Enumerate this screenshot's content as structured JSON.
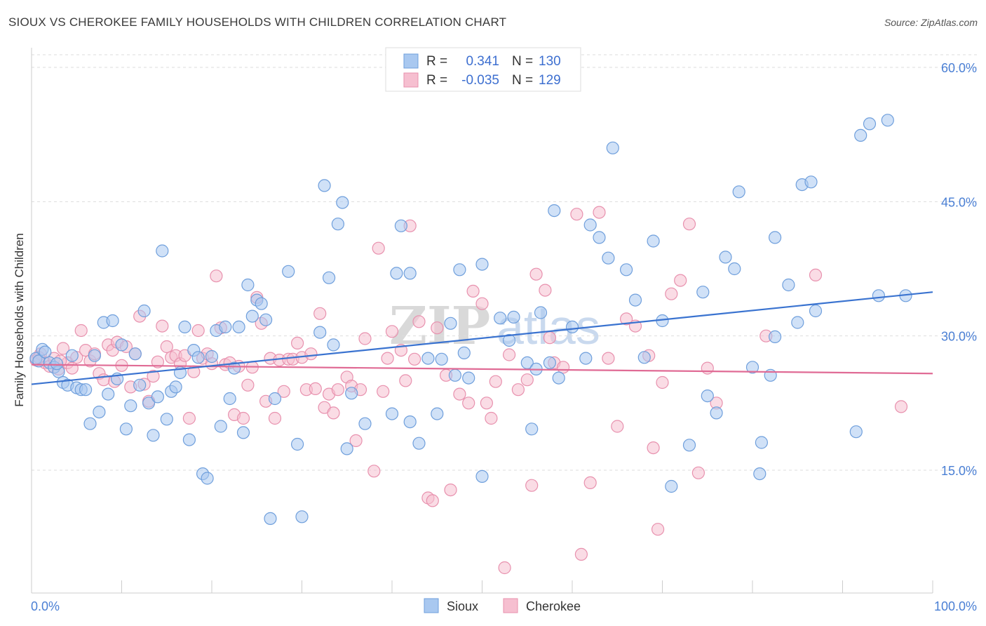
{
  "title": "SIOUX VS CHEROKEE FAMILY HOUSEHOLDS WITH CHILDREN CORRELATION CHART",
  "source": "Source: ZipAtlas.com",
  "watermark": {
    "zip": "ZIP",
    "atlas": "atlas"
  },
  "legend": {
    "r_label": "R =",
    "n_label": "N =",
    "rows": [
      {
        "r": "0.341",
        "n": "130"
      },
      {
        "r": "-0.035",
        "n": "129"
      }
    ]
  },
  "colors": {
    "sioux_fill": "#a9c8f0",
    "sioux_stroke": "#6f9fdc",
    "sioux_line": "#3a73d0",
    "cherokee_fill": "#f6bfd0",
    "cherokee_stroke": "#e891ae",
    "cherokee_line": "#e06b95",
    "tick_text": "#4a7fd4",
    "grid": "#dddddd"
  },
  "chart_data": {
    "type": "scatter",
    "title": "SIOUX VS CHEROKEE FAMILY HOUSEHOLDS WITH CHILDREN CORRELATION CHART",
    "xlabel": "",
    "ylabel": "Family Households with Children",
    "xlim": [
      0,
      100
    ],
    "ylim": [
      0,
      62
    ],
    "x_tick_labels": [
      "0.0%",
      "100.0%"
    ],
    "y_ticks": [
      15,
      30,
      45,
      60
    ],
    "y_tick_labels": [
      "15.0%",
      "30.0%",
      "45.0%",
      "60.0%"
    ],
    "grid": true,
    "legend_position": "top-center",
    "series": [
      {
        "name": "Sioux",
        "r": 0.341,
        "n": 130,
        "trend": {
          "x": [
            0,
            100
          ],
          "y": [
            24.6,
            34.9
          ]
        },
        "points": [
          [
            0.5,
            27.5
          ],
          [
            0.8,
            27.2
          ],
          [
            1.2,
            28.5
          ],
          [
            1.5,
            28.2
          ],
          [
            2.0,
            27.0
          ],
          [
            2.5,
            26.5
          ],
          [
            3.0,
            26.0
          ],
          [
            3.5,
            24.8
          ],
          [
            4.0,
            24.5
          ],
          [
            4.5,
            27.8
          ],
          [
            5.0,
            24.2
          ],
          [
            5.5,
            24.0
          ],
          [
            6.5,
            20.2
          ],
          [
            7.0,
            27.8
          ],
          [
            7.5,
            21.5
          ],
          [
            8.0,
            31.5
          ],
          [
            8.5,
            23.5
          ],
          [
            9.0,
            31.7
          ],
          [
            9.5,
            25.2
          ],
          [
            10.0,
            29.0
          ],
          [
            10.5,
            19.6
          ],
          [
            11.0,
            22.2
          ],
          [
            11.5,
            28.0
          ],
          [
            12.0,
            24.5
          ],
          [
            12.5,
            32.8
          ],
          [
            13.0,
            22.5
          ],
          [
            13.5,
            18.9
          ],
          [
            14.0,
            23.2
          ],
          [
            14.5,
            39.5
          ],
          [
            15.0,
            20.7
          ],
          [
            15.5,
            23.8
          ],
          [
            16.0,
            24.3
          ],
          [
            16.5,
            25.9
          ],
          [
            17.0,
            31.0
          ],
          [
            17.5,
            18.4
          ],
          [
            18.0,
            28.4
          ],
          [
            18.5,
            27.6
          ],
          [
            19.0,
            14.6
          ],
          [
            19.5,
            14.1
          ],
          [
            20.0,
            27.7
          ],
          [
            20.5,
            30.6
          ],
          [
            21.0,
            19.9
          ],
          [
            21.5,
            31.0
          ],
          [
            22.0,
            23.0
          ],
          [
            22.5,
            26.4
          ],
          [
            23.0,
            31.0
          ],
          [
            23.5,
            19.2
          ],
          [
            24.0,
            35.7
          ],
          [
            24.5,
            32.2
          ],
          [
            25.0,
            34.0
          ],
          [
            25.5,
            33.6
          ],
          [
            26.0,
            31.8
          ],
          [
            26.5,
            9.6
          ],
          [
            27.0,
            23.0
          ],
          [
            28.5,
            37.2
          ],
          [
            29.5,
            17.9
          ],
          [
            30.0,
            9.8
          ],
          [
            32.0,
            30.4
          ],
          [
            32.5,
            46.8
          ],
          [
            33.0,
            36.5
          ],
          [
            33.5,
            29.0
          ],
          [
            34.0,
            42.5
          ],
          [
            34.5,
            44.9
          ],
          [
            35.0,
            17.4
          ],
          [
            35.5,
            23.6
          ],
          [
            37.0,
            20.2
          ],
          [
            41.0,
            42.3
          ],
          [
            40.5,
            37.0
          ],
          [
            40.0,
            21.3
          ],
          [
            42.0,
            37.0
          ],
          [
            42.0,
            20.4
          ],
          [
            43.0,
            18.0
          ],
          [
            44.0,
            27.5
          ],
          [
            45.0,
            21.3
          ],
          [
            45.5,
            27.4
          ],
          [
            46.5,
            31.4
          ],
          [
            47.0,
            25.6
          ],
          [
            47.5,
            37.4
          ],
          [
            48.0,
            28.1
          ],
          [
            48.5,
            25.3
          ],
          [
            50.0,
            38.0
          ],
          [
            50.0,
            14.3
          ],
          [
            52.0,
            32.0
          ],
          [
            53.0,
            29.5
          ],
          [
            53.5,
            32.1
          ],
          [
            55.0,
            27.0
          ],
          [
            55.5,
            19.6
          ],
          [
            56.0,
            26.3
          ],
          [
            56.5,
            32.6
          ],
          [
            57.5,
            27.0
          ],
          [
            58.0,
            44.0
          ],
          [
            58.5,
            25.3
          ],
          [
            60.0,
            31.0
          ],
          [
            61.5,
            27.5
          ],
          [
            62.0,
            42.4
          ],
          [
            63.0,
            41.0
          ],
          [
            64.0,
            38.7
          ],
          [
            64.5,
            51.0
          ],
          [
            66.0,
            37.4
          ],
          [
            67.0,
            34.0
          ],
          [
            68.0,
            27.6
          ],
          [
            69.0,
            40.6
          ],
          [
            70.0,
            31.7
          ],
          [
            71.0,
            13.2
          ],
          [
            73.0,
            17.8
          ],
          [
            74.5,
            34.9
          ],
          [
            75.0,
            23.3
          ],
          [
            76.0,
            21.4
          ],
          [
            77.0,
            38.8
          ],
          [
            78.0,
            37.5
          ],
          [
            78.5,
            46.1
          ],
          [
            80.0,
            26.5
          ],
          [
            80.8,
            14.6
          ],
          [
            81.0,
            18.1
          ],
          [
            82.0,
            25.6
          ],
          [
            82.5,
            29.9
          ],
          [
            82.5,
            41.0
          ],
          [
            84.0,
            35.7
          ],
          [
            85.0,
            31.5
          ],
          [
            85.5,
            46.9
          ],
          [
            86.5,
            47.2
          ],
          [
            87.0,
            32.8
          ],
          [
            91.5,
            19.3
          ],
          [
            92.0,
            52.4
          ],
          [
            93.0,
            53.7
          ],
          [
            94.0,
            34.5
          ],
          [
            95.0,
            54.1
          ],
          [
            97.0,
            34.5
          ],
          [
            2.8,
            26.9
          ],
          [
            6.0,
            24.0
          ]
        ]
      },
      {
        "name": "Cherokee",
        "r": -0.035,
        "n": 129,
        "trend": {
          "x": [
            0,
            100
          ],
          "y": [
            26.8,
            25.8
          ]
        },
        "points": [
          [
            0.5,
            27.3
          ],
          [
            1.0,
            28.0
          ],
          [
            1.5,
            27.0
          ],
          [
            2.0,
            26.6
          ],
          [
            2.5,
            27.5
          ],
          [
            3.0,
            26.3
          ],
          [
            3.5,
            28.6
          ],
          [
            4.0,
            27.0
          ],
          [
            4.5,
            26.4
          ],
          [
            5.0,
            27.6
          ],
          [
            5.5,
            30.6
          ],
          [
            6.0,
            28.4
          ],
          [
            6.5,
            27.2
          ],
          [
            7.0,
            28.0
          ],
          [
            7.5,
            25.8
          ],
          [
            8.0,
            25.1
          ],
          [
            8.5,
            29.0
          ],
          [
            9.0,
            28.4
          ],
          [
            9.5,
            29.3
          ],
          [
            10.0,
            26.7
          ],
          [
            10.5,
            28.8
          ],
          [
            11.0,
            24.3
          ],
          [
            11.5,
            28.0
          ],
          [
            12.0,
            32.2
          ],
          [
            12.5,
            24.6
          ],
          [
            13.0,
            22.7
          ],
          [
            13.5,
            25.5
          ],
          [
            14.0,
            27.1
          ],
          [
            14.5,
            31.1
          ],
          [
            15.0,
            28.8
          ],
          [
            15.5,
            27.6
          ],
          [
            16.0,
            27.8
          ],
          [
            16.5,
            26.9
          ],
          [
            17.0,
            27.8
          ],
          [
            17.5,
            20.8
          ],
          [
            18.0,
            26.0
          ],
          [
            18.5,
            30.6
          ],
          [
            19.0,
            27.5
          ],
          [
            19.5,
            28.0
          ],
          [
            20.0,
            26.9
          ],
          [
            20.5,
            36.7
          ],
          [
            21.0,
            30.9
          ],
          [
            21.5,
            26.8
          ],
          [
            22.0,
            27.0
          ],
          [
            22.5,
            21.2
          ],
          [
            23.0,
            26.6
          ],
          [
            23.5,
            20.8
          ],
          [
            24.0,
            24.5
          ],
          [
            24.5,
            26.5
          ],
          [
            25.0,
            34.3
          ],
          [
            25.5,
            31.4
          ],
          [
            26.0,
            22.7
          ],
          [
            26.5,
            27.5
          ],
          [
            27.0,
            20.8
          ],
          [
            27.5,
            27.3
          ],
          [
            28.0,
            23.8
          ],
          [
            28.5,
            27.4
          ],
          [
            29.0,
            27.4
          ],
          [
            29.5,
            29.2
          ],
          [
            30.0,
            27.6
          ],
          [
            30.5,
            24.0
          ],
          [
            31.0,
            28.0
          ],
          [
            31.5,
            24.1
          ],
          [
            32.0,
            32.5
          ],
          [
            32.5,
            22.0
          ],
          [
            33.0,
            23.5
          ],
          [
            33.5,
            21.4
          ],
          [
            34.0,
            24.0
          ],
          [
            35.0,
            25.4
          ],
          [
            35.5,
            24.4
          ],
          [
            36.0,
            18.3
          ],
          [
            36.5,
            24.0
          ],
          [
            37.0,
            29.7
          ],
          [
            38.0,
            14.9
          ],
          [
            38.5,
            39.8
          ],
          [
            39.0,
            23.8
          ],
          [
            39.5,
            27.5
          ],
          [
            40.0,
            30.5
          ],
          [
            41.0,
            28.4
          ],
          [
            41.5,
            25.0
          ],
          [
            42.0,
            42.3
          ],
          [
            42.5,
            27.4
          ],
          [
            43.0,
            31.6
          ],
          [
            44.0,
            11.9
          ],
          [
            44.5,
            11.6
          ],
          [
            45.0,
            30.9
          ],
          [
            46.0,
            25.6
          ],
          [
            46.5,
            12.8
          ],
          [
            47.5,
            23.5
          ],
          [
            48.5,
            22.5
          ],
          [
            49.0,
            35.0
          ],
          [
            50.0,
            33.6
          ],
          [
            50.5,
            22.5
          ],
          [
            51.0,
            20.8
          ],
          [
            51.5,
            24.9
          ],
          [
            52.5,
            4.1
          ],
          [
            53.0,
            27.9
          ],
          [
            54.0,
            24.0
          ],
          [
            55.0,
            25.1
          ],
          [
            55.5,
            13.3
          ],
          [
            56.0,
            36.9
          ],
          [
            57.0,
            35.1
          ],
          [
            57.5,
            29.8
          ],
          [
            58.0,
            27.0
          ],
          [
            59.0,
            26.5
          ],
          [
            60.5,
            43.6
          ],
          [
            61.0,
            5.6
          ],
          [
            62.0,
            13.6
          ],
          [
            63.0,
            43.8
          ],
          [
            64.0,
            27.5
          ],
          [
            65.0,
            19.9
          ],
          [
            66.0,
            31.9
          ],
          [
            67.0,
            31.1
          ],
          [
            68.5,
            27.8
          ],
          [
            69.0,
            17.5
          ],
          [
            69.5,
            8.4
          ],
          [
            70.0,
            24.8
          ],
          [
            71.0,
            34.7
          ],
          [
            72.0,
            36.2
          ],
          [
            73.0,
            42.5
          ],
          [
            74.0,
            14.7
          ],
          [
            75.0,
            26.4
          ],
          [
            76.0,
            22.5
          ],
          [
            81.5,
            30.0
          ],
          [
            87.0,
            36.8
          ],
          [
            96.5,
            22.1
          ],
          [
            0.8,
            27.6
          ],
          [
            3.2,
            27.2
          ],
          [
            9.2,
            24.9
          ]
        ]
      }
    ]
  }
}
